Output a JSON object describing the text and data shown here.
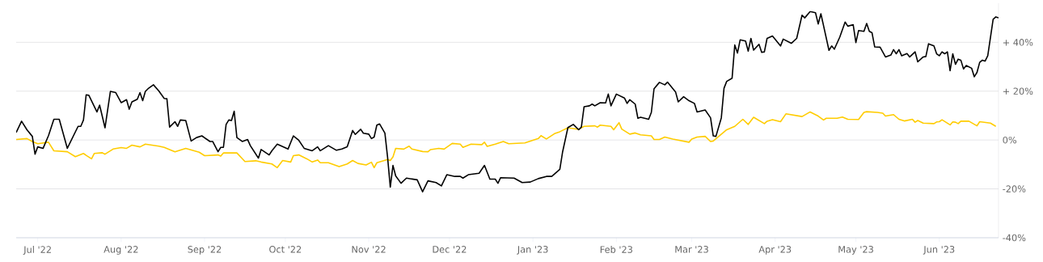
{
  "chart_data": {
    "type": "line",
    "xlim": [
      "2022-06-23",
      "2023-06-23"
    ],
    "xticks": [
      {
        "value": "2022-07-01",
        "label": "Jul '22"
      },
      {
        "value": "2022-08-01",
        "label": "Aug '22"
      },
      {
        "value": "2022-09-01",
        "label": "Sep '22"
      },
      {
        "value": "2022-10-01",
        "label": "Oct '22"
      },
      {
        "value": "2022-11-01",
        "label": "Nov '22"
      },
      {
        "value": "2022-12-01",
        "label": "Dec '22"
      },
      {
        "value": "2023-01-01",
        "label": "Jan '23"
      },
      {
        "value": "2023-02-01",
        "label": "Feb '23"
      },
      {
        "value": "2023-03-01",
        "label": "Mar '23"
      },
      {
        "value": "2023-04-01",
        "label": "Apr '23"
      },
      {
        "value": "2023-05-01",
        "label": "May '23"
      },
      {
        "value": "2023-06-01",
        "label": "Jun '23"
      }
    ],
    "ylim": [
      -40,
      56
    ],
    "yticks": [
      {
        "value": -40,
        "label": "-40%"
      },
      {
        "value": -20,
        "label": "-20%"
      },
      {
        "value": 0,
        "label": "0%"
      },
      {
        "value": 20,
        "label": "+ 20%"
      },
      {
        "value": 40,
        "label": "+ 40%"
      }
    ],
    "grid": "y",
    "series": [
      {
        "color": "#ffcc00",
        "x": [
          "2022-06-23",
          "2022-06-27",
          "2022-06-29",
          "2022-07-01",
          "2022-07-05",
          "2022-07-07",
          "2022-07-12",
          "2022-07-15",
          "2022-07-18",
          "2022-07-19",
          "2022-07-21",
          "2022-07-22",
          "2022-07-25",
          "2022-07-26",
          "2022-07-29",
          "2022-08-01",
          "2022-08-03",
          "2022-08-05",
          "2022-08-08",
          "2022-08-10",
          "2022-08-15",
          "2022-08-17",
          "2022-08-21",
          "2022-08-25",
          "2022-08-30",
          "2022-09-01",
          "2022-09-06",
          "2022-09-07",
          "2022-09-08",
          "2022-09-13",
          "2022-09-16",
          "2022-09-20",
          "2022-09-22",
          "2022-09-26",
          "2022-09-28",
          "2022-09-30",
          "2022-10-03",
          "2022-10-04",
          "2022-10-06",
          "2022-10-09",
          "2022-10-11",
          "2022-10-13",
          "2022-10-14",
          "2022-10-17",
          "2022-10-21",
          "2022-10-24",
          "2022-10-26",
          "2022-10-28",
          "2022-10-31",
          "2022-11-02",
          "2022-11-03",
          "2022-11-04",
          "2022-11-08",
          "2022-11-09",
          "2022-11-10",
          "2022-11-11",
          "2022-11-14",
          "2022-11-16",
          "2022-11-17",
          "2022-11-21",
          "2022-11-23",
          "2022-11-24",
          "2022-11-27",
          "2022-11-29",
          "2022-12-02",
          "2022-12-05",
          "2022-12-06",
          "2022-12-09",
          "2022-12-13",
          "2022-12-14",
          "2022-12-15",
          "2022-12-18",
          "2022-12-21",
          "2022-12-23",
          "2022-12-29",
          "2023-01-03",
          "2023-01-04",
          "2023-01-06",
          "2023-01-09",
          "2023-01-11",
          "2023-01-14",
          "2023-01-17",
          "2023-01-18",
          "2023-01-20",
          "2023-01-24",
          "2023-01-25",
          "2023-01-26",
          "2023-01-30",
          "2023-01-31",
          "2023-02-02",
          "2023-02-03",
          "2023-02-06",
          "2023-02-08",
          "2023-02-10",
          "2023-02-14",
          "2023-02-15",
          "2023-02-17",
          "2023-02-19",
          "2023-02-22",
          "2023-02-28",
          "2023-03-01",
          "2023-03-03",
          "2023-03-06",
          "2023-03-08",
          "2023-03-09",
          "2023-03-14",
          "2023-03-17",
          "2023-03-20",
          "2023-03-22",
          "2023-03-24",
          "2023-03-28",
          "2023-03-29",
          "2023-03-31",
          "2023-04-03",
          "2023-04-05",
          "2023-04-11",
          "2023-04-14",
          "2023-04-17",
          "2023-04-19",
          "2023-04-20",
          "2023-04-24",
          "2023-04-26",
          "2023-04-28",
          "2023-05-02",
          "2023-05-04",
          "2023-05-05",
          "2023-05-09",
          "2023-05-11",
          "2023-05-12",
          "2023-05-15",
          "2023-05-17",
          "2023-05-19",
          "2023-05-22",
          "2023-05-23",
          "2023-05-24",
          "2023-05-26",
          "2023-05-30",
          "2023-05-31",
          "2023-06-01",
          "2023-06-02",
          "2023-06-05",
          "2023-06-06",
          "2023-06-07",
          "2023-06-08",
          "2023-06-09",
          "2023-06-12",
          "2023-06-15",
          "2023-06-16",
          "2023-06-20",
          "2023-06-22"
        ],
        "values": [
          0.2,
          0.6,
          -0.6,
          -1.5,
          -0.9,
          -4.4,
          -4.8,
          -6.8,
          -5.5,
          -6.3,
          -7.7,
          -5.5,
          -5.2,
          -5.8,
          -3.7,
          -3.1,
          -3.4,
          -2.1,
          -2.8,
          -1.7,
          -2.5,
          -3.0,
          -4.8,
          -3.4,
          -5.0,
          -6.4,
          -6.1,
          -6.6,
          -5.3,
          -5.3,
          -8.8,
          -8.5,
          -9.0,
          -9.8,
          -11.3,
          -8.4,
          -9.0,
          -6.4,
          -6.1,
          -7.7,
          -9.0,
          -8.2,
          -9.3,
          -9.3,
          -10.9,
          -9.8,
          -8.4,
          -9.6,
          -10.2,
          -9.1,
          -11.3,
          -9.3,
          -8.0,
          -8.4,
          -6.9,
          -3.4,
          -3.7,
          -2.5,
          -3.7,
          -4.7,
          -4.8,
          -3.9,
          -3.4,
          -3.7,
          -1.4,
          -1.7,
          -3.0,
          -1.7,
          -1.9,
          -0.9,
          -2.6,
          -1.7,
          -0.6,
          -1.5,
          -1.2,
          0.6,
          1.8,
          0.4,
          2.6,
          3.4,
          5.0,
          4.5,
          4.4,
          5.6,
          5.8,
          5.3,
          6.1,
          5.6,
          4.2,
          7.1,
          4.5,
          2.4,
          2.9,
          2.1,
          1.7,
          0.2,
          0.2,
          1.2,
          0.4,
          -0.9,
          0.4,
          1.2,
          1.5,
          -0.6,
          -0.4,
          4.2,
          5.6,
          8.5,
          6.4,
          9.3,
          6.7,
          7.7,
          8.3,
          7.5,
          10.7,
          9.6,
          11.5,
          9.8,
          8.2,
          8.9,
          8.9,
          9.4,
          8.5,
          8.4,
          11.3,
          11.6,
          11.3,
          11.0,
          9.8,
          10.4,
          8.5,
          7.8,
          8.5,
          7.3,
          8.0,
          6.9,
          6.7,
          7.4,
          7.5,
          8.3,
          6.2,
          7.4,
          7.3,
          6.7,
          7.7,
          7.7,
          5.8,
          7.5,
          6.9,
          5.6
        ]
      },
      {
        "color": "#000000",
        "x": [
          "2022-06-23",
          "2022-06-25",
          "2022-06-27",
          "2022-06-29",
          "2022-06-30",
          "2022-07-01",
          "2022-07-03",
          "2022-07-05",
          "2022-07-07",
          "2022-07-09",
          "2022-07-12",
          "2022-07-16",
          "2022-07-17",
          "2022-07-18",
          "2022-07-19",
          "2022-07-20",
          "2022-07-23",
          "2022-07-24",
          "2022-07-26",
          "2022-07-28",
          "2022-07-30",
          "2022-08-01",
          "2022-08-03",
          "2022-08-04",
          "2022-08-05",
          "2022-08-07",
          "2022-08-08",
          "2022-08-09",
          "2022-08-10",
          "2022-08-11",
          "2022-08-13",
          "2022-08-15",
          "2022-08-17",
          "2022-08-18",
          "2022-08-19",
          "2022-08-21",
          "2022-08-22",
          "2022-08-23",
          "2022-08-25",
          "2022-08-27",
          "2022-08-29",
          "2022-08-31",
          "2022-09-03",
          "2022-09-04",
          "2022-09-06",
          "2022-09-07",
          "2022-09-08",
          "2022-09-09",
          "2022-09-10",
          "2022-09-11",
          "2022-09-12",
          "2022-09-13",
          "2022-09-15",
          "2022-09-17",
          "2022-09-18",
          "2022-09-21",
          "2022-09-22",
          "2022-09-25",
          "2022-09-26",
          "2022-09-28",
          "2022-10-02",
          "2022-10-04",
          "2022-10-06",
          "2022-10-08",
          "2022-10-11",
          "2022-10-13",
          "2022-10-14",
          "2022-10-17",
          "2022-10-20",
          "2022-10-22",
          "2022-10-24",
          "2022-10-26",
          "2022-10-27",
          "2022-10-29",
          "2022-10-30",
          "2022-11-01",
          "2022-11-02",
          "2022-11-03",
          "2022-11-04",
          "2022-11-05",
          "2022-11-07",
          "2022-11-08",
          "2022-11-09",
          "2022-11-10",
          "2022-11-11",
          "2022-11-13",
          "2022-11-15",
          "2022-11-19",
          "2022-11-21",
          "2022-11-23",
          "2022-11-26",
          "2022-11-28",
          "2022-11-30",
          "2022-12-03",
          "2022-12-05",
          "2022-12-06",
          "2022-12-08",
          "2022-12-12",
          "2022-12-14",
          "2022-12-16",
          "2022-12-18",
          "2022-12-19",
          "2022-12-20",
          "2022-12-25",
          "2022-12-28",
          "2022-12-31",
          "2023-01-03",
          "2023-01-06",
          "2023-01-08",
          "2023-01-11",
          "2023-01-12",
          "2023-01-14",
          "2023-01-16",
          "2023-01-18",
          "2023-01-19",
          "2023-01-20",
          "2023-01-22",
          "2023-01-23",
          "2023-01-24",
          "2023-01-26",
          "2023-01-28",
          "2023-01-29",
          "2023-01-30",
          "2023-02-01",
          "2023-02-04",
          "2023-02-05",
          "2023-02-06",
          "2023-02-08",
          "2023-02-09",
          "2023-02-10",
          "2023-02-13",
          "2023-02-14",
          "2023-02-15",
          "2023-02-17",
          "2023-02-19",
          "2023-02-20",
          "2023-02-23",
          "2023-02-24",
          "2023-02-26",
          "2023-02-28",
          "2023-03-02",
          "2023-03-03",
          "2023-03-06",
          "2023-03-08",
          "2023-03-09",
          "2023-03-10",
          "2023-03-12",
          "2023-03-13",
          "2023-03-14",
          "2023-03-16",
          "2023-03-17",
          "2023-03-18",
          "2023-03-19",
          "2023-03-21",
          "2023-03-22",
          "2023-03-23",
          "2023-03-24",
          "2023-03-26",
          "2023-03-27",
          "2023-03-28",
          "2023-03-29",
          "2023-03-31",
          "2023-04-03",
          "2023-04-04",
          "2023-04-07",
          "2023-04-09",
          "2023-04-11",
          "2023-04-12",
          "2023-04-14",
          "2023-04-16",
          "2023-04-17",
          "2023-04-18",
          "2023-04-21",
          "2023-04-22",
          "2023-04-23",
          "2023-04-25",
          "2023-04-27",
          "2023-04-28",
          "2023-04-30",
          "2023-05-01",
          "2023-05-02",
          "2023-05-04",
          "2023-05-05",
          "2023-05-06",
          "2023-05-07",
          "2023-05-08",
          "2023-05-10",
          "2023-05-12",
          "2023-05-14",
          "2023-05-15",
          "2023-05-16",
          "2023-05-17",
          "2023-05-18",
          "2023-05-20",
          "2023-05-21",
          "2023-05-23",
          "2023-05-24",
          "2023-05-26",
          "2023-05-27",
          "2023-05-28",
          "2023-05-30",
          "2023-05-31",
          "2023-06-01",
          "2023-06-02",
          "2023-06-03",
          "2023-06-04",
          "2023-06-05",
          "2023-06-06",
          "2023-06-07",
          "2023-06-08",
          "2023-06-09",
          "2023-06-10",
          "2023-06-11",
          "2023-06-13",
          "2023-06-14",
          "2023-06-15",
          "2023-06-16",
          "2023-06-17",
          "2023-06-18",
          "2023-06-19",
          "2023-06-21",
          "2023-06-22",
          "2023-06-23"
        ],
        "values": [
          3.1,
          7.7,
          4.2,
          1.5,
          -5.8,
          -2.8,
          -3.4,
          1.8,
          8.5,
          8.5,
          -3.4,
          5.6,
          5.6,
          8.2,
          18.5,
          18.3,
          11.5,
          14.3,
          5.0,
          19.9,
          19.4,
          15.3,
          16.5,
          12.6,
          15.6,
          16.7,
          19.4,
          16.1,
          19.9,
          21.0,
          22.6,
          20.1,
          17.0,
          16.9,
          5.3,
          7.5,
          5.6,
          8.2,
          8.0,
          -0.4,
          1.0,
          1.7,
          -0.6,
          -0.6,
          -4.8,
          -3.0,
          -3.0,
          6.4,
          8.2,
          8.0,
          11.8,
          1.0,
          -0.6,
          0.2,
          -2.3,
          -7.4,
          -3.9,
          -6.1,
          -4.4,
          -1.7,
          -3.7,
          1.7,
          -0.1,
          -3.4,
          -4.4,
          -2.8,
          -4.4,
          -2.3,
          -4.2,
          -3.7,
          -2.8,
          3.9,
          2.3,
          4.4,
          2.8,
          2.4,
          0.6,
          1.2,
          6.1,
          6.6,
          2.8,
          -7.1,
          -19.3,
          -10.4,
          -14.7,
          -17.7,
          -15.6,
          -16.3,
          -21.2,
          -16.7,
          -17.4,
          -18.8,
          -14.2,
          -14.9,
          -14.9,
          -15.6,
          -14.2,
          -13.6,
          -10.4,
          -16.0,
          -16.0,
          -17.7,
          -15.4,
          -15.6,
          -17.4,
          -17.2,
          -15.8,
          -14.9,
          -14.9,
          -12.0,
          -5.0,
          5.1,
          6.4,
          4.2,
          5.3,
          13.6,
          14.0,
          14.7,
          14.0,
          15.3,
          15.2,
          18.8,
          14.0,
          18.8,
          17.2,
          15.0,
          16.5,
          14.7,
          8.9,
          9.3,
          8.5,
          11.3,
          21.0,
          23.6,
          22.6,
          23.7,
          19.7,
          15.6,
          17.7,
          16.1,
          15.0,
          11.5,
          12.3,
          9.1,
          1.7,
          1.5,
          9.1,
          21.2,
          24.0,
          25.3,
          38.9,
          35.6,
          41.0,
          40.5,
          36.4,
          41.6,
          36.8,
          39.2,
          35.9,
          36.1,
          41.6,
          42.6,
          38.5,
          41.3,
          39.6,
          41.6,
          51.1,
          50.0,
          52.6,
          52.1,
          47.5,
          51.7,
          36.7,
          38.5,
          37.2,
          42.1,
          48.3,
          46.6,
          47.2,
          39.9,
          44.8,
          44.5,
          47.7,
          44.5,
          43.9,
          38.1,
          38.0,
          34.0,
          34.8,
          37.0,
          35.3,
          37.0,
          34.5,
          35.4,
          34.0,
          36.1,
          32.0,
          34.0,
          34.2,
          39.4,
          38.5,
          35.3,
          34.5,
          36.1,
          35.3,
          36.1,
          28.4,
          35.3,
          31.0,
          33.1,
          32.7,
          29.1,
          30.5,
          29.4,
          25.9,
          27.7,
          31.8,
          32.7,
          32.3,
          34.5,
          49.4,
          50.4,
          50.0
        ]
      }
    ]
  }
}
